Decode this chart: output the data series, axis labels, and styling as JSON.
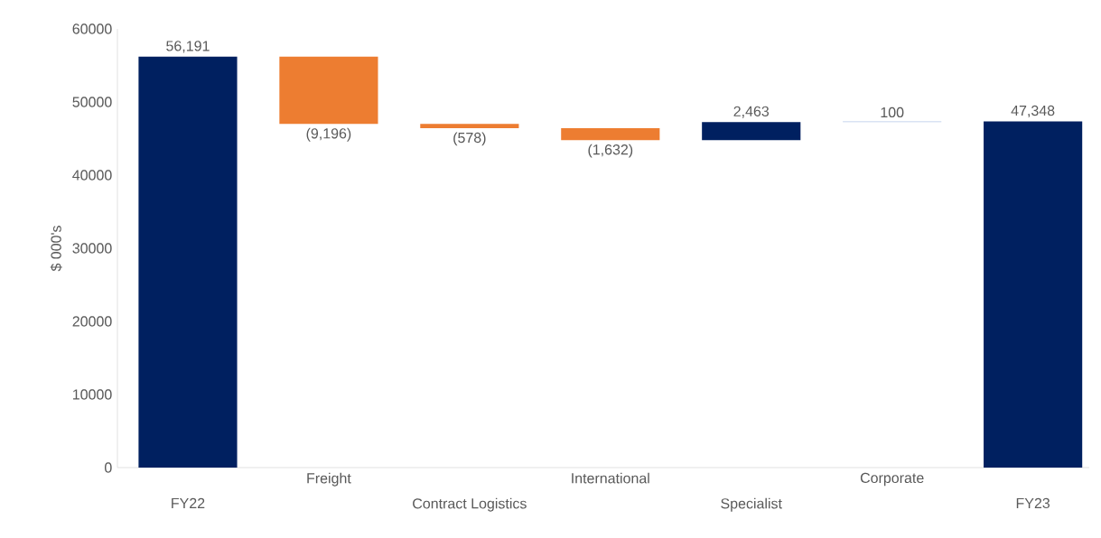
{
  "chart_data": {
    "type": "bar",
    "ylabel": "$ 000's",
    "categories": [
      "FY22",
      "Freight",
      "Contract Logistics",
      "International",
      "Specialist",
      "Corporate",
      "FY23"
    ],
    "values": [
      56191,
      -9196,
      -578,
      -1632,
      2463,
      100,
      47348
    ],
    "base": [
      0,
      56191,
      46995,
      46417,
      44785,
      47248,
      0
    ],
    "colors": [
      "#002060",
      "#ed7d31",
      "#ed7d31",
      "#ed7d31",
      "#002060",
      "#b4c7e7",
      "#002060"
    ],
    "value_labels": [
      "56,191",
      "(9,196)",
      "(578)",
      "(1,632)",
      "2,463",
      "100",
      "47,348"
    ],
    "ylim": [
      0,
      60000
    ],
    "yticks": [
      0,
      10000,
      20000,
      30000,
      40000,
      50000,
      60000
    ],
    "grid": false
  }
}
